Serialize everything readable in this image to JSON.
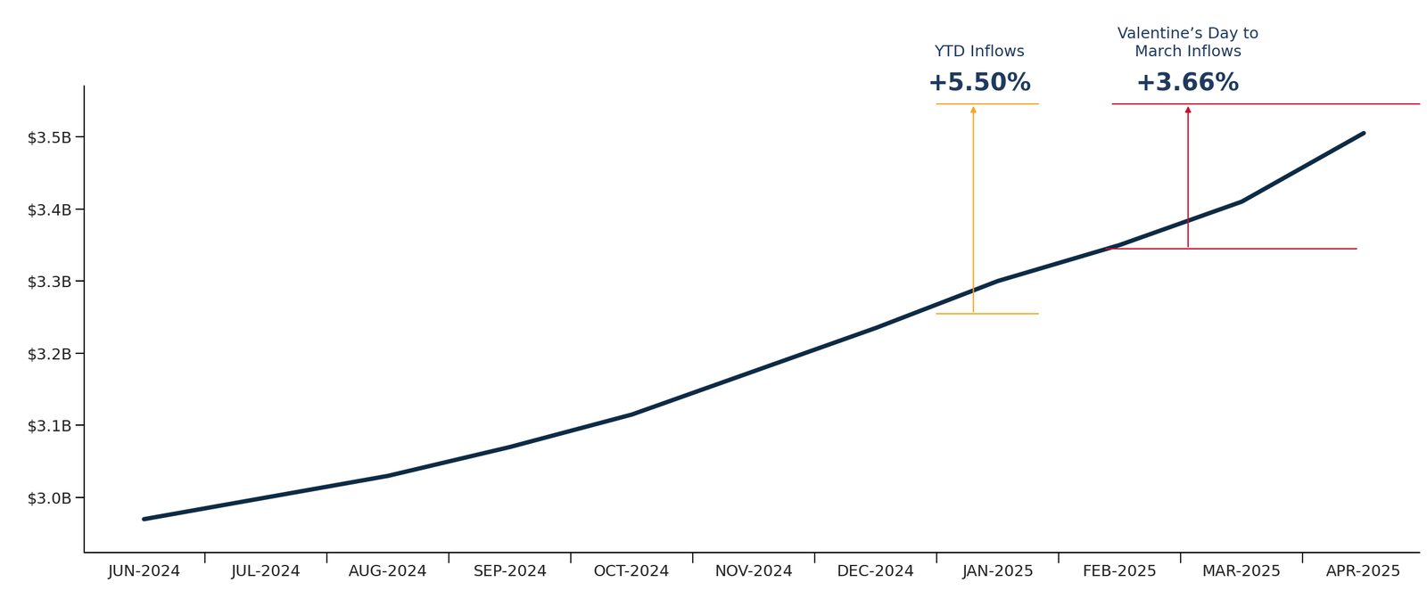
{
  "chart_data": {
    "type": "line",
    "categories": [
      "JUN-2024",
      "JUL-2024",
      "AUG-2024",
      "SEP-2024",
      "OCT-2024",
      "NOV-2024",
      "DEC-2024",
      "JAN-2025",
      "FEB-2025",
      "MAR-2025",
      "APR-2025"
    ],
    "values": [
      2.97,
      3.0,
      3.03,
      3.07,
      3.115,
      3.175,
      3.235,
      3.3,
      3.35,
      3.41,
      3.505
    ],
    "color": "#0d2b45",
    "ylim": [
      2.924,
      3.57
    ],
    "yticks": [
      {
        "value": 3.0,
        "label": "$3.0B"
      },
      {
        "value": 3.1,
        "label": "$3.1B"
      },
      {
        "value": 3.2,
        "label": "$3.2B"
      },
      {
        "value": 3.3,
        "label": "$3.3B"
      },
      {
        "value": 3.4,
        "label": "$3.4B"
      },
      {
        "value": 3.5,
        "label": "$3.5B"
      }
    ],
    "grid": false,
    "annotations": [
      {
        "label": "YTD Inflows",
        "value_label": "+5.50%",
        "from": 3.255,
        "to": 3.545,
        "color": "#f5a623"
      },
      {
        "label": "Valentine’s Day to\nMarch Inflows",
        "value_label": "+3.66%",
        "from": 3.345,
        "to": 3.545,
        "color": "#c8102e"
      }
    ]
  }
}
